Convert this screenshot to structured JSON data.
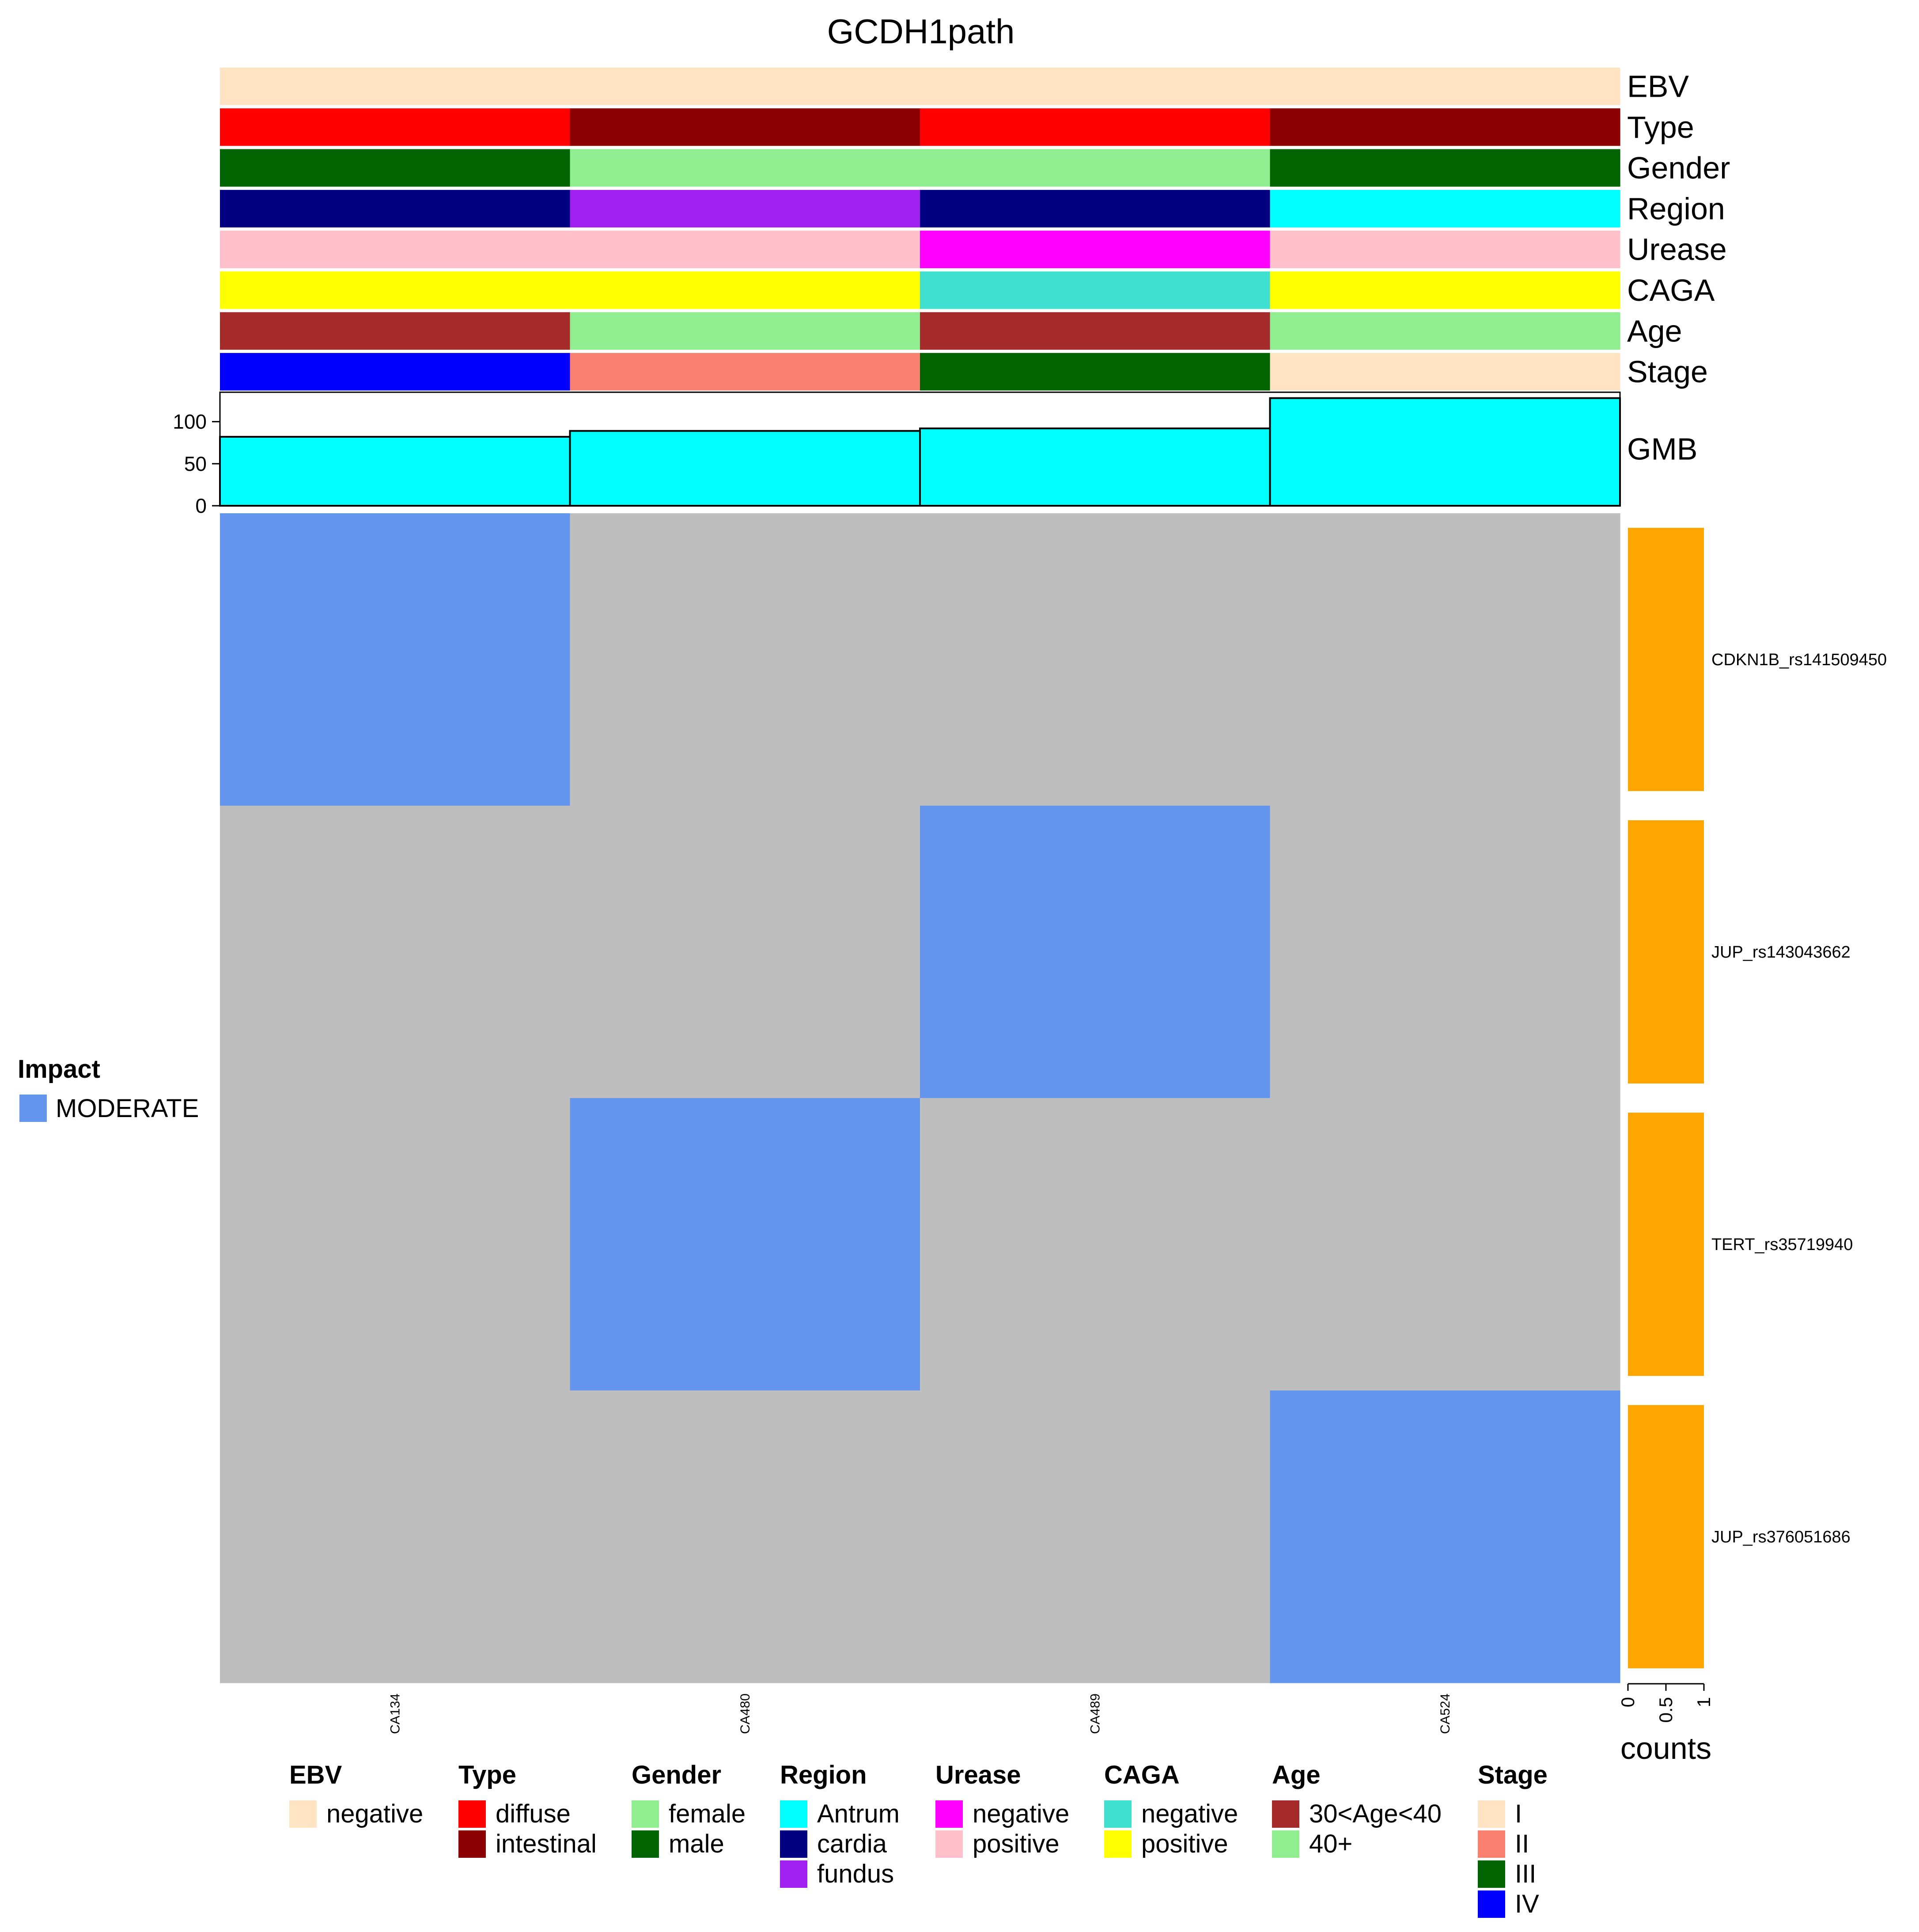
{
  "chart_data": {
    "type": "heatmap",
    "title": "GCDH1path",
    "samples": [
      "CA134",
      "CA480",
      "CA489",
      "CA524"
    ],
    "annotations": [
      {
        "name": "EBV",
        "values": [
          "negative",
          "negative",
          "negative",
          "negative"
        ]
      },
      {
        "name": "Type",
        "values": [
          "diffuse",
          "intestinal",
          "diffuse",
          "intestinal"
        ]
      },
      {
        "name": "Gender",
        "values": [
          "male",
          "female",
          "female",
          "male"
        ]
      },
      {
        "name": "Region",
        "values": [
          "cardia",
          "fundus",
          "cardia",
          "Antrum"
        ]
      },
      {
        "name": "Urease",
        "values": [
          "positive",
          "positive",
          "negative",
          "positive"
        ]
      },
      {
        "name": "CAGA",
        "values": [
          "positive",
          "positive",
          "negative",
          "positive"
        ]
      },
      {
        "name": "Age",
        "values": [
          "30<Age<40",
          "40+",
          "30<Age<40",
          "40+"
        ]
      },
      {
        "name": "Stage",
        "values": [
          "IV",
          "II",
          "III",
          "I"
        ]
      }
    ],
    "gmb": {
      "label": "GMB",
      "values": [
        82,
        89,
        92,
        128
      ],
      "ticks": [
        0,
        50,
        100
      ],
      "ylim": [
        0,
        135
      ],
      "color": "#00ffff"
    },
    "genes": [
      "CDKN1B_rs141509450",
      "JUP_rs143043662",
      "TERT_rs35719940",
      "JUP_rs376051686"
    ],
    "matrix": [
      [
        "MODERATE",
        "",
        "",
        ""
      ],
      [
        "",
        "",
        "MODERATE",
        ""
      ],
      [
        "",
        "MODERATE",
        "",
        ""
      ],
      [
        "",
        "",
        "",
        "MODERATE"
      ]
    ],
    "background_color": "#bebebe",
    "impact_colors": {
      "MODERATE": "#6495ed"
    },
    "counts": {
      "label": "counts",
      "values": [
        1,
        1,
        1,
        1
      ],
      "ticks": [
        "0",
        "0.5",
        "1"
      ],
      "xlim": [
        0,
        1
      ],
      "color": "#ffa500"
    },
    "impact_legend": {
      "title": "Impact",
      "items": [
        {
          "label": "MODERATE",
          "color": "#6495ed"
        }
      ]
    },
    "legends": [
      {
        "title": "EBV",
        "items": [
          {
            "label": "negative",
            "color": "#ffe4c4"
          }
        ]
      },
      {
        "title": "Type",
        "items": [
          {
            "label": "diffuse",
            "color": "#ff0000"
          },
          {
            "label": "intestinal",
            "color": "#8b0000"
          }
        ]
      },
      {
        "title": "Gender",
        "items": [
          {
            "label": "female",
            "color": "#90ee90"
          },
          {
            "label": "male",
            "color": "#006400"
          }
        ]
      },
      {
        "title": "Region",
        "items": [
          {
            "label": "Antrum",
            "color": "#00ffff"
          },
          {
            "label": "cardia",
            "color": "#000080"
          },
          {
            "label": "fundus",
            "color": "#a020f0"
          }
        ]
      },
      {
        "title": "Urease",
        "items": [
          {
            "label": "negative",
            "color": "#ff00ff"
          },
          {
            "label": "positive",
            "color": "#ffc0cb"
          }
        ]
      },
      {
        "title": "CAGA",
        "items": [
          {
            "label": "negative",
            "color": "#40e0d0"
          },
          {
            "label": "positive",
            "color": "#ffff00"
          }
        ]
      },
      {
        "title": "Age",
        "items": [
          {
            "label": "30<Age<40",
            "color": "#a52a2a"
          },
          {
            "label": "40+",
            "color": "#90ee90"
          }
        ]
      },
      {
        "title": "Stage",
        "items": [
          {
            "label": "I",
            "color": "#ffe4c4"
          },
          {
            "label": "II",
            "color": "#fa8072"
          },
          {
            "label": "III",
            "color": "#006400"
          },
          {
            "label": "IV",
            "color": "#0000ff"
          }
        ]
      }
    ]
  }
}
